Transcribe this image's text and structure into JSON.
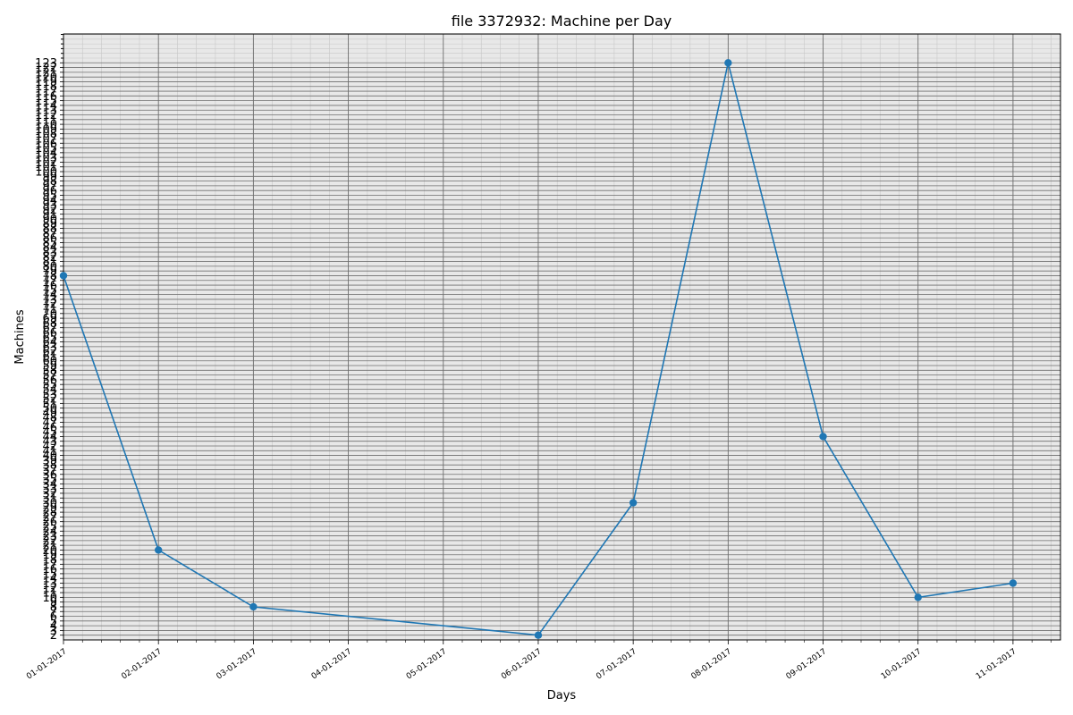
{
  "chart_data": {
    "type": "line",
    "title": "file 3372932: Machine per Day",
    "xlabel": "Days",
    "ylabel": "Machines",
    "x": [
      "01-01-2017",
      "02-01-2017",
      "03-01-2017",
      "06-01-2017",
      "07-01-2017",
      "08-01-2017",
      "09-01-2017",
      "10-01-2017",
      "11-01-2017"
    ],
    "x_index": [
      0,
      1,
      2,
      5,
      6,
      7,
      8,
      9,
      10
    ],
    "values": [
      78,
      20,
      8,
      2,
      30,
      123,
      44,
      10,
      13
    ],
    "xtick_labels": [
      "01-01-2017",
      "02-01-2017",
      "03-01-2017",
      "04-01-2017",
      "05-01-2017",
      "06-01-2017",
      "07-01-2017",
      "08-01-2017",
      "09-01-2017",
      "10-01-2017",
      "11-01-2017"
    ],
    "ytick_labels": [
      "2",
      "3",
      "4",
      "5",
      "6",
      "7",
      "8",
      "9",
      "10",
      "11",
      "12",
      "13",
      "14",
      "15",
      "16",
      "17",
      "18",
      "19",
      "20",
      "21",
      "22",
      "23",
      "24",
      "25",
      "26",
      "27",
      "28",
      "29",
      "30",
      "31",
      "32",
      "33",
      "34",
      "35",
      "36",
      "37",
      "38",
      "39",
      "40",
      "41",
      "42",
      "43",
      "44",
      "45",
      "46",
      "47",
      "48",
      "49",
      "50",
      "51",
      "52",
      "53",
      "54",
      "55",
      "56",
      "57",
      "58",
      "59",
      "60",
      "61",
      "62",
      "63",
      "64",
      "65",
      "66",
      "67",
      "68",
      "69",
      "70",
      "71",
      "72",
      "73",
      "74",
      "75",
      "76",
      "77",
      "78",
      "79",
      "80",
      "81",
      "82",
      "83",
      "84",
      "85",
      "86",
      "87",
      "88",
      "89",
      "90",
      "91",
      "92",
      "93",
      "94",
      "95",
      "96",
      "97",
      "98",
      "99",
      "100",
      "101",
      "102",
      "103",
      "104",
      "105",
      "106",
      "107",
      "108",
      "109",
      "110",
      "111",
      "112",
      "113",
      "114",
      "115",
      "116",
      "117",
      "118",
      "119",
      "120",
      "121",
      "122",
      "123"
    ],
    "xlim": [
      0,
      10.5
    ],
    "ylim": [
      1.0,
      129.1
    ],
    "grid": true,
    "line_color": "#1f77b4",
    "background_color": "#e8e8e8",
    "grid_color": "#6e6e6e"
  }
}
